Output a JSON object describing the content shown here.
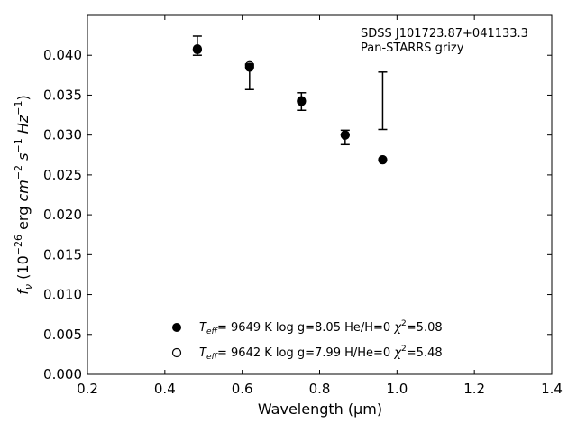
{
  "chart_data": {
    "type": "scatter",
    "title": "",
    "annotation": {
      "object": "SDSS J101723.87+041133.3",
      "survey": "Pan-STARRS grizy"
    },
    "xlabel": "Wavelength (μm)",
    "ylabel": "f_ν (10^-26 erg cm^-2 s^-1 Hz^-1)",
    "xlim": [
      0.2,
      1.4
    ],
    "ylim": [
      0.0,
      0.045
    ],
    "xticks": [
      "0.2",
      "0.4",
      "0.6",
      "0.8",
      "1.0",
      "1.2",
      "1.4"
    ],
    "yticks": [
      "0.000",
      "0.005",
      "0.010",
      "0.015",
      "0.020",
      "0.025",
      "0.030",
      "0.035",
      "0.040"
    ],
    "grid": false,
    "legend_position": "bottom-center",
    "observed": {
      "x": [
        0.484,
        0.619,
        0.753,
        0.866,
        0.963
      ],
      "y": [
        0.0412,
        0.0373,
        0.0342,
        0.0297,
        0.0343
      ],
      "yerr": [
        0.0012,
        0.0016,
        0.0011,
        0.0009,
        0.0036
      ]
    },
    "series": [
      {
        "name": "T_eff= 9649 K log g=8.05 He/H=0 χ²=5.08",
        "legend": {
          "teff": "9649 K",
          "logg": "log g=8.05",
          "comp": "He/H=0",
          "chi2": "=5.08"
        },
        "marker": "filled",
        "x": [
          0.484,
          0.619,
          0.753,
          0.866,
          0.963
        ],
        "y": [
          0.0407,
          0.0385,
          0.0342,
          0.03,
          0.0269
        ]
      },
      {
        "name": "T_eff= 9642 K log g=7.99 H/He=0 χ²=5.48",
        "legend": {
          "teff": "9642 K",
          "logg": "log g=7.99",
          "comp": "H/He=0",
          "chi2": "=5.48"
        },
        "marker": "open",
        "x": [
          0.484,
          0.619,
          0.753,
          0.866,
          0.963
        ],
        "y": [
          0.0408,
          0.0387,
          0.0343,
          0.03,
          0.0269
        ]
      }
    ]
  }
}
